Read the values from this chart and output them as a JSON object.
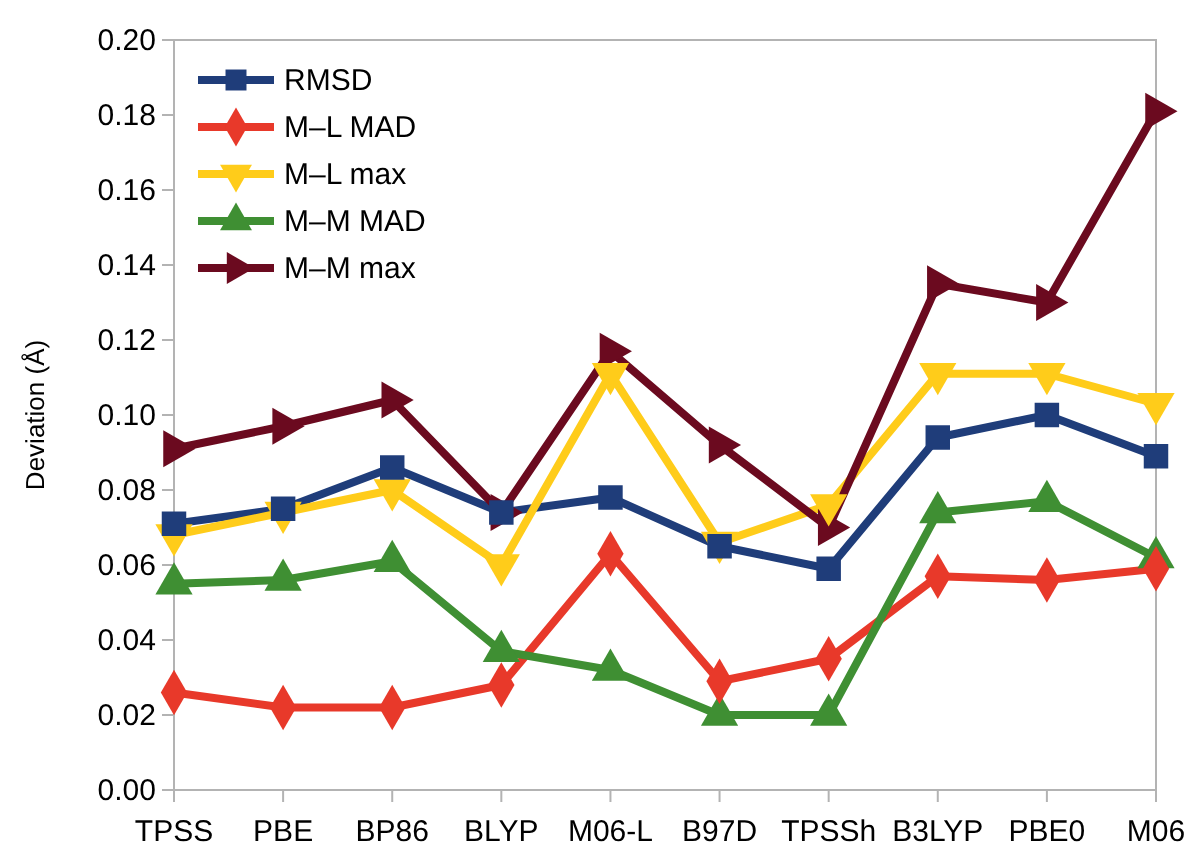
{
  "chart_data": {
    "type": "line",
    "ylabel": "Deviation (Å)",
    "categories": [
      "TPSS",
      "PBE",
      "BP86",
      "BLYP",
      "M06-L",
      "B97D",
      "TPSSh",
      "B3LYP",
      "PBE0",
      "M06"
    ],
    "series": [
      {
        "name": "RMSD",
        "color": "#1f3d7a",
        "marker": "square",
        "values": [
          0.071,
          0.075,
          0.086,
          0.074,
          0.078,
          0.065,
          0.059,
          0.094,
          0.1,
          0.089
        ]
      },
      {
        "name": "M–L MAD",
        "color": "#e8392a",
        "marker": "diamond",
        "values": [
          0.026,
          0.022,
          0.022,
          0.028,
          0.063,
          0.029,
          0.035,
          0.057,
          0.056,
          0.059
        ]
      },
      {
        "name": "M–L max",
        "color": "#ffcc1a",
        "marker": "triangle-down",
        "values": [
          0.068,
          0.074,
          0.08,
          0.06,
          0.111,
          0.066,
          0.076,
          0.111,
          0.111,
          0.103
        ]
      },
      {
        "name": "M–M MAD",
        "color": "#3f8f33",
        "marker": "triangle",
        "values": [
          0.055,
          0.056,
          0.061,
          0.037,
          0.032,
          0.02,
          0.02,
          0.074,
          0.077,
          0.062
        ]
      },
      {
        "name": "M–M max",
        "color": "#6b0a1f",
        "marker": "triangle-right",
        "values": [
          0.091,
          0.097,
          0.104,
          0.074,
          0.117,
          0.092,
          0.07,
          0.135,
          0.13,
          0.181
        ]
      }
    ],
    "ylim": [
      0,
      0.2
    ],
    "yticks": [
      {
        "value": 0,
        "label": "0.00"
      },
      {
        "value": 0.02,
        "label": "0.02"
      },
      {
        "value": 0.04,
        "label": "0.04"
      },
      {
        "value": 0.06,
        "label": "0.06"
      },
      {
        "value": 0.08,
        "label": "0.08"
      },
      {
        "value": 0.1,
        "label": "0.10"
      },
      {
        "value": 0.12,
        "label": "0.12"
      },
      {
        "value": 0.14,
        "label": "0.14"
      },
      {
        "value": 0.16,
        "label": "0.16"
      },
      {
        "value": 0.18,
        "label": "0.18"
      },
      {
        "value": 0.2,
        "label": "0.20"
      }
    ],
    "grid": false,
    "legend": "top left",
    "line_style": "solid"
  }
}
